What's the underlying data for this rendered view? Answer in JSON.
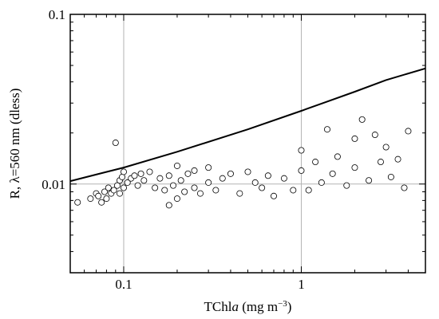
{
  "chart_data": {
    "type": "scatter",
    "title": "",
    "xlabel_parts": [
      "TChl",
      "a",
      " (mg m",
      "−3",
      ")"
    ],
    "ylabel": "R, λ=560 nm (dless)",
    "x_scale": "log",
    "y_scale": "log",
    "xlim": [
      0.05,
      5
    ],
    "ylim": [
      0.003,
      0.1
    ],
    "grid": true,
    "x_gridlines": [
      0.1,
      1
    ],
    "y_gridlines": [
      0.01
    ],
    "x_ticks": [
      {
        "value": 0.1,
        "label": "0.1"
      },
      {
        "value": 1,
        "label": "1"
      }
    ],
    "y_ticks": [
      {
        "value": 0.01,
        "label": "0.01"
      },
      {
        "value": 0.1,
        "label": "0.1"
      }
    ],
    "series": [
      {
        "type": "line",
        "color": "#000000",
        "x": [
          0.05,
          0.1,
          0.2,
          0.5,
          1,
          2,
          3,
          5
        ],
        "y": [
          0.0104,
          0.0125,
          0.0155,
          0.021,
          0.027,
          0.035,
          0.041,
          0.048
        ]
      },
      {
        "type": "scatter",
        "marker": "open-circle",
        "color": "#000000",
        "x": [
          0.055,
          0.065,
          0.07,
          0.072,
          0.075,
          0.078,
          0.08,
          0.082,
          0.085,
          0.088,
          0.09,
          0.092,
          0.095,
          0.095,
          0.098,
          0.1,
          0.1,
          0.105,
          0.11,
          0.115,
          0.12,
          0.125,
          0.13,
          0.14,
          0.15,
          0.16,
          0.17,
          0.18,
          0.18,
          0.19,
          0.2,
          0.2,
          0.21,
          0.22,
          0.23,
          0.25,
          0.25,
          0.27,
          0.3,
          0.3,
          0.33,
          0.36,
          0.4,
          0.45,
          0.5,
          0.55,
          0.6,
          0.65,
          0.7,
          0.8,
          0.9,
          1.0,
          1.0,
          1.1,
          1.2,
          1.3,
          1.4,
          1.5,
          1.6,
          1.8,
          2.0,
          2.0,
          2.2,
          2.4,
          2.6,
          2.8,
          3.0,
          3.2,
          3.5,
          3.8,
          4.0
        ],
        "y": [
          0.0078,
          0.0082,
          0.0088,
          0.0085,
          0.0078,
          0.009,
          0.0082,
          0.0095,
          0.0088,
          0.0092,
          0.0175,
          0.0098,
          0.0105,
          0.0088,
          0.011,
          0.0095,
          0.0118,
          0.0102,
          0.0108,
          0.0112,
          0.0098,
          0.0115,
          0.0105,
          0.0118,
          0.0095,
          0.0108,
          0.0092,
          0.0075,
          0.0112,
          0.0098,
          0.0128,
          0.0082,
          0.0105,
          0.009,
          0.0115,
          0.0095,
          0.012,
          0.0088,
          0.0102,
          0.0125,
          0.0092,
          0.0108,
          0.0115,
          0.0088,
          0.0118,
          0.0102,
          0.0095,
          0.0112,
          0.0085,
          0.0108,
          0.0092,
          0.0158,
          0.012,
          0.0092,
          0.0135,
          0.0102,
          0.021,
          0.0115,
          0.0145,
          0.0098,
          0.0185,
          0.0125,
          0.024,
          0.0105,
          0.0195,
          0.0135,
          0.0165,
          0.011,
          0.014,
          0.0095,
          0.0205
        ]
      }
    ]
  }
}
